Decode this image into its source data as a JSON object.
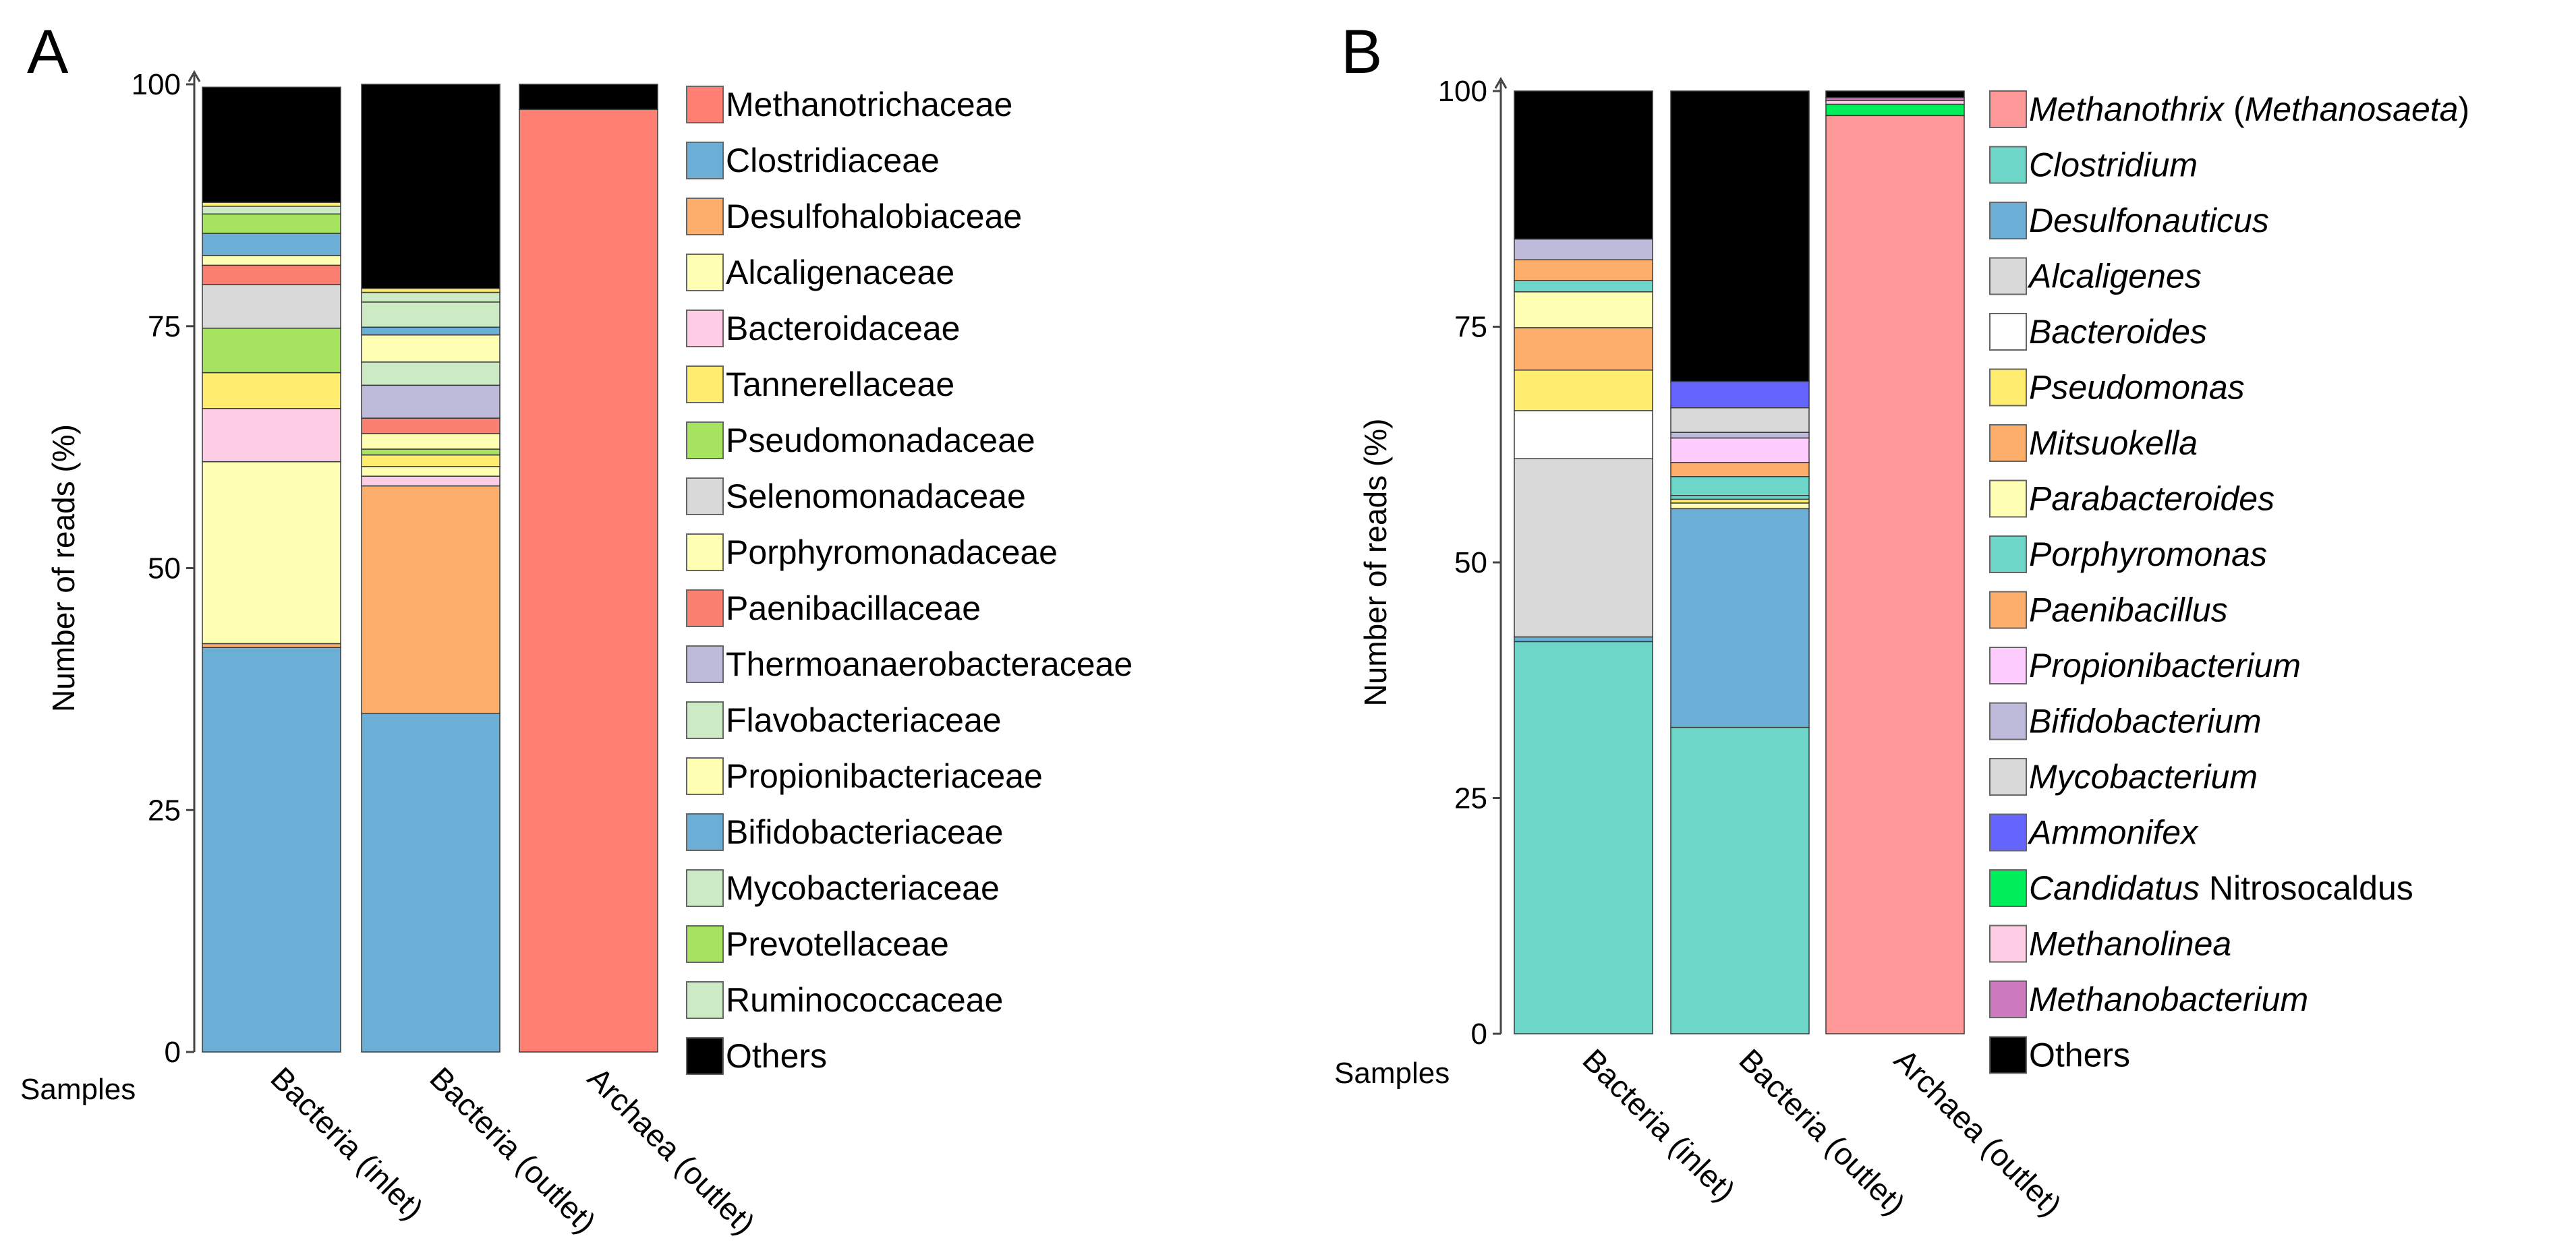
{
  "figure": {
    "panel_a_letter": "A",
    "panel_b_letter": "B",
    "samples_label": "Samples"
  },
  "chart_data": [
    {
      "type": "bar",
      "stacked": true,
      "panel": "A",
      "title": "",
      "xlabel": "Samples",
      "ylabel": "Number of reads (%)",
      "ylim": [
        0,
        100
      ],
      "yticks": [
        "0",
        "25",
        "50",
        "75",
        "100"
      ],
      "categories": [
        "Bacteria (inlet)",
        "Bacteria (outlet)",
        "Archaea (outlet)"
      ],
      "series": [
        {
          "name": "Bifidobacteriaceae",
          "color": "#6BAED6",
          "values": [
            41.8,
            35.0,
            0
          ]
        },
        {
          "name": "Desulfohalobiaceae",
          "color": "#FDAE6B",
          "values": [
            0.4,
            23.5,
            0
          ]
        },
        {
          "name": "Propionibacteriaceae",
          "color": "#FFFFB3",
          "values": [
            18.8,
            0,
            0
          ]
        },
        {
          "name": "Bacteroidaceae",
          "color": "#FCCDE5",
          "values": [
            5.5,
            1.0,
            0
          ]
        },
        {
          "name": "Alcaligenaceae",
          "color": "#FFFFB3",
          "values": [
            0,
            1.0,
            0
          ]
        },
        {
          "name": "Tannerellaceae",
          "color": "#FFED6F",
          "values": [
            3.7,
            1.2,
            0
          ]
        },
        {
          "name": "Pseudomonadaceae",
          "color": "#A6E35E",
          "values": [
            4.6,
            0.6,
            0
          ]
        },
        {
          "name": "Porphyromonadaceae",
          "color": "#FFFFB3",
          "values": [
            0,
            1.6,
            0
          ]
        },
        {
          "name": "Selenomonadaceae",
          "color": "#D9D9D9",
          "values": [
            4.5,
            0,
            0
          ]
        },
        {
          "name": "Paenibacillaceae",
          "color": "#FB8072",
          "values": [
            2.0,
            1.6,
            0
          ]
        },
        {
          "name": "Thermoanaerobacteraceae",
          "color": "#BEBADA",
          "values": [
            0,
            3.4,
            0
          ]
        },
        {
          "name": "Flavobacteriaceae",
          "color": "#CCEBC5",
          "values": [
            0,
            2.4,
            0
          ]
        },
        {
          "name": "Porphyromonadaceae (top)",
          "color": "#FFFFB3",
          "values": [
            1.0,
            2.8,
            0
          ]
        },
        {
          "name": "Clostridiaceae",
          "color": "#6BAED6",
          "values": [
            2.3,
            0.8,
            0
          ]
        },
        {
          "name": "Mycobacteriaceae",
          "color": "#CCEBC5",
          "values": [
            0,
            2.6,
            0
          ]
        },
        {
          "name": "Prevotellaceae",
          "color": "#A6E35E",
          "values": [
            2.0,
            0,
            0
          ]
        },
        {
          "name": "Ruminococcaceae",
          "color": "#CCEBC5",
          "values": [
            0.8,
            1.0,
            0
          ]
        },
        {
          "name": "Tannerellaceae (top)",
          "color": "#FFED6F",
          "values": [
            0.4,
            0.4,
            0
          ]
        },
        {
          "name": "Methanotrichaceae",
          "color": "#FF7F72",
          "values": [
            0,
            0,
            97.4
          ]
        },
        {
          "name": "Others",
          "color": "#000000",
          "values": [
            11.9,
            21.1,
            2.6
          ]
        }
      ],
      "legend": [
        {
          "label": "Methanotrichaceae",
          "color": "#FF7F72"
        },
        {
          "label": "Clostridiaceae",
          "color": "#6BAED6"
        },
        {
          "label": "Desulfohalobiaceae",
          "color": "#FDAE6B"
        },
        {
          "label": "Alcaligenaceae",
          "color": "#FFFFB3"
        },
        {
          "label": "Bacteroidaceae",
          "color": "#FCCDE5"
        },
        {
          "label": "Tannerellaceae",
          "color": "#FFED6F"
        },
        {
          "label": "Pseudomonadaceae",
          "color": "#A6E35E"
        },
        {
          "label": "Selenomonadaceae",
          "color": "#D9D9D9"
        },
        {
          "label": "Porphyromonadaceae",
          "color": "#FFFFB3"
        },
        {
          "label": "Paenibacillaceae",
          "color": "#FB8072"
        },
        {
          "label": "Thermoanaerobacteraceae",
          "color": "#BEBADA"
        },
        {
          "label": "Flavobacteriaceae",
          "color": "#CCEBC5"
        },
        {
          "label": "Propionibacteriaceae",
          "color": "#FFFFB3"
        },
        {
          "label": "Bifidobacteriaceae",
          "color": "#6BAED6"
        },
        {
          "label": "Mycobacteriaceae",
          "color": "#CCEBC5"
        },
        {
          "label": "Prevotellaceae",
          "color": "#A6E35E"
        },
        {
          "label": "Ruminococcaceae",
          "color": "#CCEBC5"
        },
        {
          "label": "Others",
          "color": "#000000"
        }
      ]
    },
    {
      "type": "bar",
      "stacked": true,
      "panel": "B",
      "title": "",
      "xlabel": "Samples",
      "ylabel": "Number of reads (%)",
      "ylim": [
        0,
        100
      ],
      "yticks": [
        "0",
        "25",
        "50",
        "75",
        "100"
      ],
      "categories": [
        "Bacteria (inlet)",
        "Bacteria (outlet)",
        "Archaea (outlet)"
      ],
      "series": [
        {
          "name": "Clostridium",
          "color": "#6DD6C9",
          "values": [
            41.6,
            32.5,
            0
          ]
        },
        {
          "name": "Desulfonauticus",
          "color": "#6BAED6",
          "values": [
            0.5,
            23.2,
            0
          ]
        },
        {
          "name": "Parabacteroides",
          "color": "#FFFFB3",
          "values": [
            0,
            0.6,
            0
          ]
        },
        {
          "name": "Pseudomonas",
          "color": "#FFED6F",
          "values": [
            0,
            0.4,
            0
          ]
        },
        {
          "name": "Porphyromonas",
          "color": "#6DD6C9",
          "values": [
            0,
            0.4,
            0
          ]
        },
        {
          "name": "Mycobacterium",
          "color": "#D9D9D9",
          "values": [
            18.9,
            0,
            0
          ]
        },
        {
          "name": "Bacteroides",
          "color": "#FFFFFF",
          "values": [
            5.1,
            0,
            0
          ]
        },
        {
          "name": "Pseudomonas (upper)",
          "color": "#FFED6F",
          "values": [
            4.3,
            0,
            0
          ]
        },
        {
          "name": "Porphyromonas (upper)",
          "color": "#6DD6C9",
          "values": [
            0,
            2.0,
            0
          ]
        },
        {
          "name": "Paenibacillus",
          "color": "#FDAE6B",
          "values": [
            0,
            1.5,
            0
          ]
        },
        {
          "name": "Mitsuokella",
          "color": "#FDAE6B",
          "values": [
            4.5,
            0,
            0
          ]
        },
        {
          "name": "Propionibacterium",
          "color": "#FFCCFF",
          "values": [
            0,
            2.6,
            0
          ]
        },
        {
          "name": "Bifidobacterium",
          "color": "#BEBADA",
          "values": [
            0,
            0.6,
            0
          ]
        },
        {
          "name": "Alcaligenes",
          "color": "#D9D9D9",
          "values": [
            0,
            2.6,
            0
          ]
        },
        {
          "name": "Parabacteroides (upper)",
          "color": "#FFFFB3",
          "values": [
            3.8,
            0,
            0
          ]
        },
        {
          "name": "Porphyromonas (top)",
          "color": "#6DD6C9",
          "values": [
            1.2,
            0,
            0
          ]
        },
        {
          "name": "Paenibacillus (top)",
          "color": "#FDAE6B",
          "values": [
            2.2,
            0,
            0
          ]
        },
        {
          "name": "Bifidobacterium (top)",
          "color": "#BEBADA",
          "values": [
            2.2,
            0,
            0
          ]
        },
        {
          "name": "Ammonifex",
          "color": "#6666FF",
          "values": [
            0,
            2.8,
            0
          ]
        },
        {
          "name": "Methanothrix (Methanosaeta)",
          "color": "#FF9999",
          "values": [
            0,
            0,
            97.4
          ]
        },
        {
          "name": "Candidatus Nitrosocaldus",
          "color": "#00EE5A",
          "values": [
            0,
            0,
            1.2
          ]
        },
        {
          "name": "Methanolinea",
          "color": "#FFCCE5",
          "values": [
            0,
            0,
            0.4
          ]
        },
        {
          "name": "Methanobacterium",
          "color": "#CC79C0",
          "values": [
            0,
            0,
            0.3
          ]
        },
        {
          "name": "Others",
          "color": "#000000",
          "values": [
            15.7,
            30.8,
            0.7
          ]
        }
      ],
      "legend": [
        {
          "label": "Methanothrix",
          "suffix": " (",
          "suffix_italic": "Methanosaeta",
          "suffix_end": ")",
          "color": "#FF9999",
          "italic": true
        },
        {
          "label": "Clostridium",
          "color": "#6DD6C9",
          "italic": true
        },
        {
          "label": "Desulfonauticus",
          "color": "#6BAED6",
          "italic": true
        },
        {
          "label": "Alcaligenes",
          "color": "#D9D9D9",
          "italic": true
        },
        {
          "label": "Bacteroides",
          "color": "#FFFFFF",
          "italic": true
        },
        {
          "label": "Pseudomonas",
          "color": "#FFED6F",
          "italic": true
        },
        {
          "label": "Mitsuokella",
          "color": "#FDAE6B",
          "italic": true
        },
        {
          "label": "Parabacteroides",
          "color": "#FFFFB3",
          "italic": true
        },
        {
          "label": "Porphyromonas",
          "color": "#6DD6C9",
          "italic": true
        },
        {
          "label": "Paenibacillus",
          "color": "#FDAE6B",
          "italic": true
        },
        {
          "label": "Propionibacterium",
          "color": "#FFCCFF",
          "italic": true
        },
        {
          "label": "Bifidobacterium",
          "color": "#BEBADA",
          "italic": true
        },
        {
          "label": "Mycobacterium",
          "color": "#D9D9D9",
          "italic": true
        },
        {
          "label": "Ammonifex",
          "color": "#6666FF",
          "italic": true
        },
        {
          "label": "Candidatus",
          "suffix": " Nitrosocaldus",
          "color": "#00EE5A",
          "italic": true
        },
        {
          "label": "Methanolinea",
          "color": "#FFCCE5",
          "italic": true
        },
        {
          "label": "Methanobacterium",
          "color": "#CC79C0",
          "italic": true
        },
        {
          "label": "Others",
          "color": "#000000",
          "italic": false
        }
      ]
    }
  ]
}
